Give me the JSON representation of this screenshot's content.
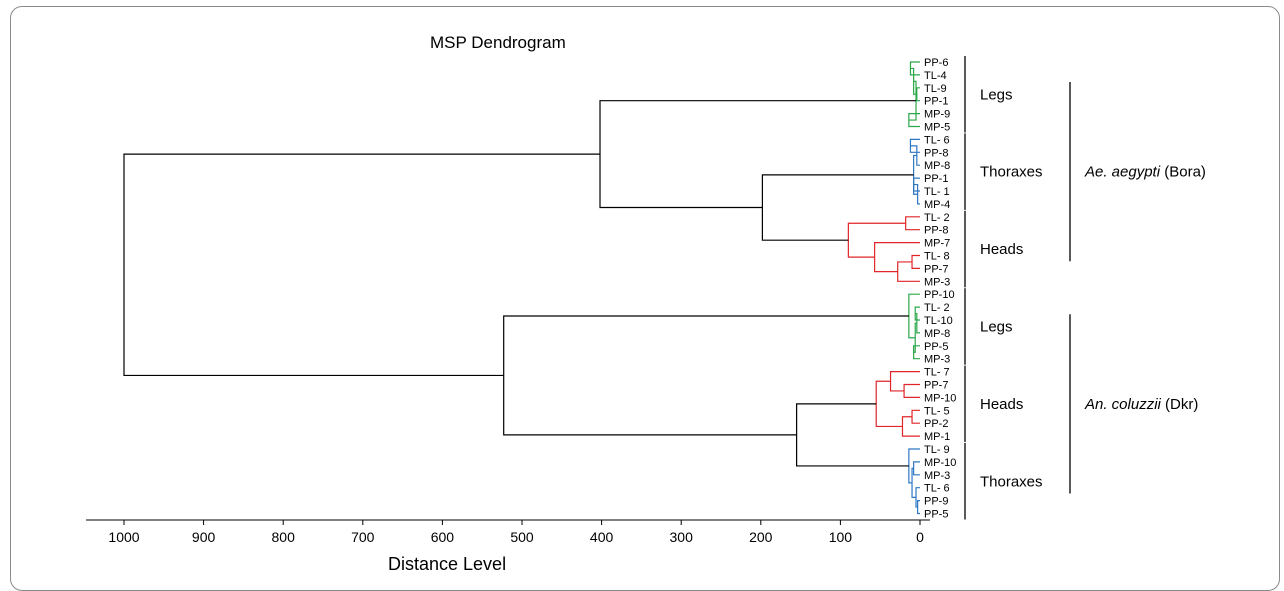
{
  "chart_data": {
    "type": "dendrogram",
    "title": "MSP Dendrogram",
    "xlabel": "Distance Level",
    "xlim": [
      1000,
      0
    ],
    "xticks": [
      1000,
      900,
      800,
      700,
      600,
      500,
      400,
      300,
      200,
      100,
      0
    ],
    "tick_labels": [
      "1000",
      "900",
      "800",
      "700",
      "600",
      "500",
      "400",
      "300",
      "200",
      "100",
      "0"
    ],
    "colors": {
      "legs": "#2aa84a",
      "thoraxes": "#2f78c4",
      "heads": "#e0262a",
      "trunk": "#000000"
    },
    "leaves": [
      "PP-6",
      "TL-4",
      "TL-9",
      "PP-1",
      "MP-9",
      "MP-5",
      "TL- 6",
      "PP-8",
      "MP-8",
      "PP-1",
      "TL- 1",
      "MP-4",
      "TL- 2",
      "PP-8",
      "MP-7",
      "TL- 8",
      "PP-7",
      "MP-3",
      "PP-10",
      "TL- 2",
      "TL-10",
      "MP-8",
      "PP-5",
      "MP-3",
      "TL- 7",
      "PP-7",
      "MP-10",
      "TL- 5",
      "PP-2",
      "MP-1",
      "TL- 9",
      "MP-10",
      "MP-3",
      "TL- 6",
      "PP-9",
      "PP-5"
    ],
    "groups": [
      {
        "label": "Legs",
        "color": "legs",
        "start": 0,
        "end": 5
      },
      {
        "label": "Thoraxes",
        "color": "thoraxes",
        "start": 6,
        "end": 11
      },
      {
        "label": "Heads",
        "color": "heads",
        "start": 12,
        "end": 17
      },
      {
        "label": "Legs",
        "color": "legs",
        "start": 18,
        "end": 23
      },
      {
        "label": "Heads",
        "color": "heads",
        "start": 24,
        "end": 29
      },
      {
        "label": "Thoraxes",
        "color": "thoraxes",
        "start": 30,
        "end": 35
      }
    ],
    "species": [
      {
        "name": "Ae. aegypti",
        "suffix": " (Bora)",
        "start": 0,
        "end": 17
      },
      {
        "name": "An. coluzzii",
        "suffix": " (Dkr)",
        "start": 18,
        "end": 35
      }
    ],
    "merges": [
      {
        "id": "a1",
        "l": 0,
        "r": 1,
        "h": 12,
        "color": "legs"
      },
      {
        "id": "a2",
        "l": 2,
        "r": 3,
        "h": 4,
        "color": "legs"
      },
      {
        "id": "a3",
        "l": "a1",
        "r": "a2",
        "h": 8,
        "color": "legs"
      },
      {
        "id": "a4",
        "l": 4,
        "r": 5,
        "h": 14,
        "color": "legs"
      },
      {
        "id": "aL",
        "l": "a3",
        "r": "a4",
        "h": 5,
        "color": "legs"
      },
      {
        "id": "b1",
        "l": 6,
        "r": 7,
        "h": 12,
        "color": "thoraxes"
      },
      {
        "id": "b2",
        "l": "b1",
        "r": 8,
        "h": 4,
        "color": "thoraxes"
      },
      {
        "id": "b3",
        "l": 9,
        "r": 10,
        "h": 8,
        "color": "thoraxes"
      },
      {
        "id": "b4",
        "l": "b3",
        "r": 11,
        "h": 3,
        "color": "thoraxes"
      },
      {
        "id": "bT",
        "l": "b2",
        "r": "b4",
        "h": 8,
        "color": "thoraxes"
      },
      {
        "id": "c1",
        "l": 12,
        "r": 13,
        "h": 18,
        "color": "heads"
      },
      {
        "id": "c2",
        "l": 15,
        "r": 16,
        "h": 10,
        "color": "heads"
      },
      {
        "id": "c3",
        "l": "c2",
        "r": 17,
        "h": 28,
        "color": "heads"
      },
      {
        "id": "c4",
        "l": 14,
        "r": "c3",
        "h": 57,
        "color": "heads"
      },
      {
        "id": "cH",
        "l": "c1",
        "r": "c4",
        "h": 90,
        "color": "heads"
      },
      {
        "id": "AT",
        "l": "bT",
        "r": "cH",
        "h": 198,
        "color": "trunk"
      },
      {
        "id": "A",
        "l": "aL",
        "r": "AT",
        "h": 402,
        "color": "trunk"
      },
      {
        "id": "d1",
        "l": 19,
        "r": 20,
        "h": 6,
        "color": "legs"
      },
      {
        "id": "d2",
        "l": "d1",
        "r": 21,
        "h": 4,
        "color": "legs"
      },
      {
        "id": "d3",
        "l": 22,
        "r": 23,
        "h": 8,
        "color": "legs"
      },
      {
        "id": "d4",
        "l": "d2",
        "r": "d3",
        "h": 6,
        "color": "legs"
      },
      {
        "id": "dL",
        "l": 18,
        "r": "d4",
        "h": 14,
        "color": "legs"
      },
      {
        "id": "e1",
        "l": 25,
        "r": 26,
        "h": 20,
        "color": "heads"
      },
      {
        "id": "e2",
        "l": 24,
        "r": "e1",
        "h": 37,
        "color": "heads"
      },
      {
        "id": "e3",
        "l": 27,
        "r": 28,
        "h": 10,
        "color": "heads"
      },
      {
        "id": "e4",
        "l": "e3",
        "r": 29,
        "h": 22,
        "color": "heads"
      },
      {
        "id": "eH",
        "l": "e2",
        "r": "e4",
        "h": 55,
        "color": "heads"
      },
      {
        "id": "f1",
        "l": 31,
        "r": 32,
        "h": 8,
        "color": "thoraxes"
      },
      {
        "id": "f2",
        "l": 34,
        "r": 35,
        "h": 3,
        "color": "thoraxes"
      },
      {
        "id": "f3",
        "l": 33,
        "r": "f2",
        "h": 5,
        "color": "thoraxes"
      },
      {
        "id": "f4",
        "l": "f1",
        "r": "f3",
        "h": 10,
        "color": "thoraxes"
      },
      {
        "id": "fT",
        "l": 30,
        "r": "f4",
        "h": 14,
        "color": "thoraxes"
      },
      {
        "id": "HT",
        "l": "eH",
        "r": "fT",
        "h": 155,
        "color": "trunk"
      },
      {
        "id": "B",
        "l": "dL",
        "r": "HT",
        "h": 523,
        "color": "trunk"
      },
      {
        "id": "root",
        "l": "A",
        "r": "B",
        "h": 1000,
        "color": "trunk"
      }
    ]
  }
}
